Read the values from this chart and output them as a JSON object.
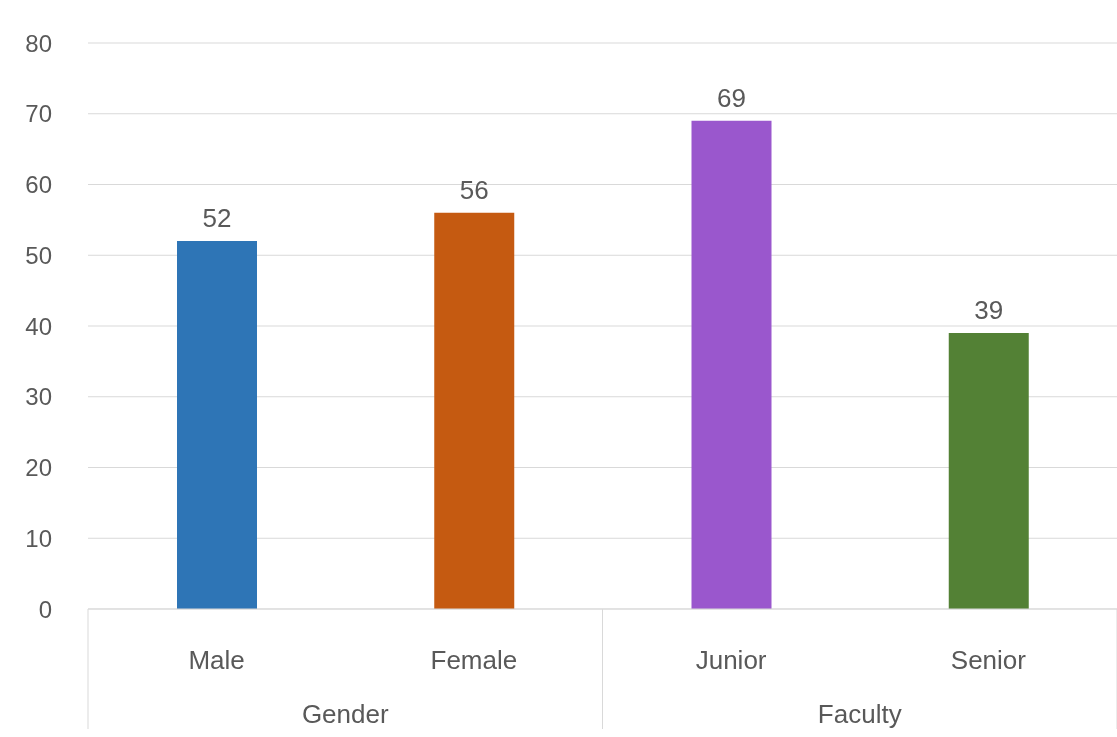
{
  "chart_data": {
    "type": "bar",
    "categories": [
      "Male",
      "Female",
      "Junior",
      "Senior"
    ],
    "values": [
      52,
      56,
      69,
      39
    ],
    "colors": [
      "#2e75b6",
      "#c55a11",
      "#9a57cd",
      "#538135"
    ],
    "ylim": [
      0,
      80
    ],
    "yticks": [
      0,
      10,
      20,
      30,
      40,
      50,
      60,
      70,
      80
    ],
    "grid": "y",
    "legend": false,
    "data_labels": true,
    "annotations": [
      "Gender",
      "Faculty"
    ]
  }
}
